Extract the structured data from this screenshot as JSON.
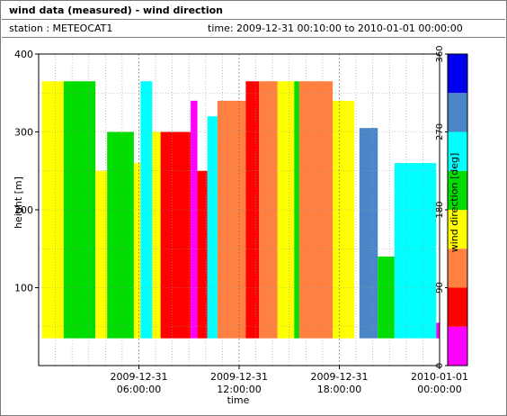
{
  "window": {
    "title": "wind data (measured) - wind direction",
    "station_label": "station : METEOCAT1",
    "time_label": "time: 2009-12-31 00:10:00 to 2010-01-01 00:00:00"
  },
  "colors": {
    "bands": [
      "#ff00ff",
      "#ff0000",
      "#ff8040",
      "#ffff00",
      "#00dd00",
      "#00ffff",
      "#4a86c8",
      "#0000ee"
    ],
    "grid": "#9a9a9a",
    "background": "#ffffff"
  },
  "chart_data": {
    "type": "heatmap",
    "title": "",
    "xlabel": "time",
    "ylabel": "height [m]",
    "colorbar_label": "wind direction [deg]",
    "xlim": [
      0,
      24
    ],
    "ylim": [
      0,
      400
    ],
    "x_ticks": [
      {
        "value": 6,
        "line1": "2009-12-31",
        "line2": "06:00:00"
      },
      {
        "value": 12,
        "line1": "2009-12-31",
        "line2": "12:00:00"
      },
      {
        "value": 18,
        "line1": "2009-12-31",
        "line2": "18:00:00"
      },
      {
        "value": 24,
        "line1": "2010-01-01",
        "line2": "00:00:00"
      }
    ],
    "y_ticks": [
      100,
      200,
      300,
      400
    ],
    "colorbar_ticks": [
      0,
      90,
      180,
      270,
      360
    ],
    "color_bands": [
      {
        "from": 0,
        "to": 45,
        "color": "#ff00ff"
      },
      {
        "from": 45,
        "to": 90,
        "color": "#ff0000"
      },
      {
        "from": 90,
        "to": 135,
        "color": "#ff8040"
      },
      {
        "from": 135,
        "to": 180,
        "color": "#ffff00"
      },
      {
        "from": 180,
        "to": 225,
        "color": "#00dd00"
      },
      {
        "from": 225,
        "to": 270,
        "color": "#00ffff"
      },
      {
        "from": 270,
        "to": 315,
        "color": "#4a86c8"
      },
      {
        "from": 315,
        "to": 360,
        "color": "#0000ee"
      }
    ],
    "y_range_data": [
      35,
      365
    ],
    "segments": [
      {
        "start": 0.2,
        "end": 1.5,
        "top": 365,
        "direction": 160
      },
      {
        "start": 1.5,
        "end": 3.4,
        "top": 365,
        "direction": 200
      },
      {
        "start": 3.4,
        "end": 4.1,
        "top": 250,
        "direction": 160
      },
      {
        "start": 4.1,
        "end": 5.7,
        "top": 300,
        "direction": 200
      },
      {
        "start": 5.7,
        "end": 6.1,
        "top": 260,
        "direction": 160
      },
      {
        "start": 6.1,
        "end": 6.8,
        "top": 365,
        "direction": 245
      },
      {
        "start": 6.8,
        "end": 7.3,
        "top": 300,
        "direction": 160
      },
      {
        "start": 7.3,
        "end": 9.1,
        "top": 300,
        "direction": 65
      },
      {
        "start": 9.1,
        "end": 9.5,
        "top": 340,
        "direction": 20
      },
      {
        "start": 9.5,
        "end": 10.1,
        "top": 250,
        "direction": 65
      },
      {
        "start": 10.1,
        "end": 10.7,
        "top": 320,
        "direction": 245
      },
      {
        "start": 10.7,
        "end": 12.4,
        "top": 340,
        "direction": 110
      },
      {
        "start": 12.4,
        "end": 13.2,
        "top": 365,
        "direction": 65
      },
      {
        "start": 13.2,
        "end": 14.3,
        "top": 365,
        "direction": 110
      },
      {
        "start": 14.3,
        "end": 15.3,
        "top": 365,
        "direction": 160
      },
      {
        "start": 15.3,
        "end": 15.6,
        "top": 365,
        "direction": 200
      },
      {
        "start": 15.6,
        "end": 17.6,
        "top": 365,
        "direction": 110
      },
      {
        "start": 17.6,
        "end": 18.9,
        "top": 340,
        "direction": 160
      },
      {
        "start": 19.2,
        "end": 20.3,
        "top": 305,
        "direction": 290
      },
      {
        "start": 20.3,
        "end": 21.3,
        "top": 140,
        "direction": 200
      },
      {
        "start": 21.3,
        "end": 23.8,
        "top": 260,
        "direction": 245
      },
      {
        "start": 23.8,
        "end": 24.0,
        "top": 55,
        "direction": 20
      }
    ]
  }
}
